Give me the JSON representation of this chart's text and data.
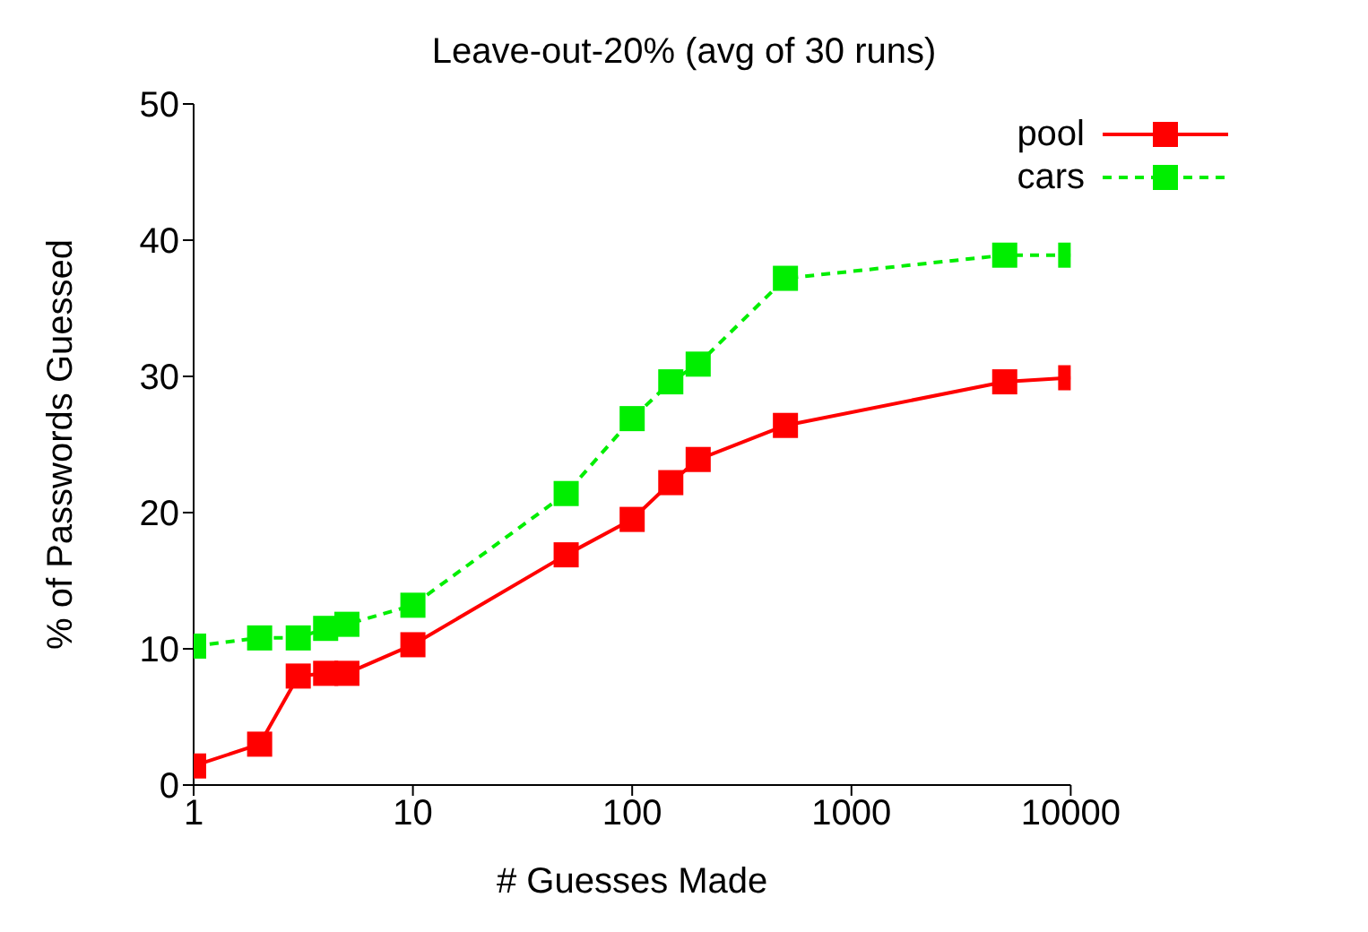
{
  "chart_data": {
    "type": "line",
    "title": "Leave-out-20% (avg of 30 runs)",
    "xlabel": "# Guesses Made",
    "ylabel": "% of Passwords Guessed",
    "x": [
      1,
      2,
      3,
      4,
      5,
      10,
      50,
      100,
      150,
      200,
      500,
      5000,
      10000
    ],
    "series": [
      {
        "name": "pool",
        "color": "#ff0000",
        "line_style": "solid",
        "values": [
          1.4,
          3.0,
          8.0,
          8.2,
          8.2,
          10.3,
          16.9,
          19.5,
          22.2,
          23.9,
          26.4,
          29.6,
          29.9
        ]
      },
      {
        "name": "cars",
        "color": "#00ee00",
        "line_style": "dashed",
        "values": [
          10.2,
          10.8,
          10.8,
          11.5,
          11.8,
          13.2,
          21.4,
          26.9,
          29.6,
          30.9,
          37.2,
          38.9,
          38.9
        ]
      }
    ],
    "log": "x",
    "xlim": [
      1,
      10000
    ],
    "xticks": [
      1,
      10,
      100,
      1000,
      10000
    ],
    "ylim": [
      0,
      50
    ],
    "yticks": [
      0,
      10,
      20,
      30,
      40,
      50
    ],
    "marker": "square",
    "legend": "top right",
    "grid": false
  }
}
